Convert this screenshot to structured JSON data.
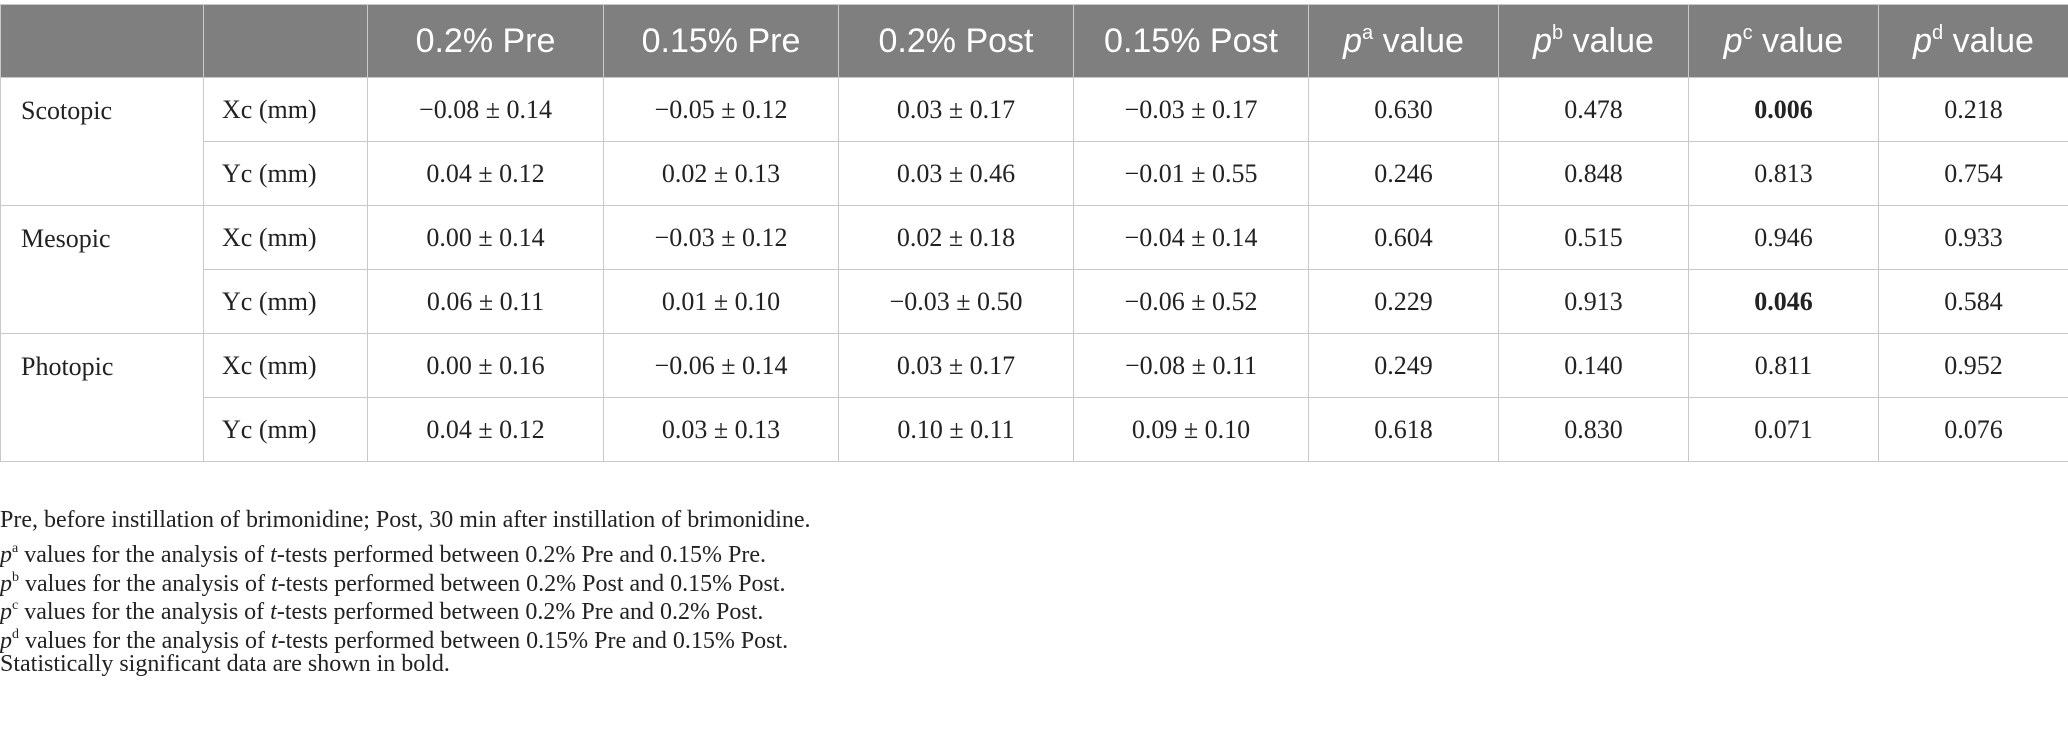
{
  "table": {
    "headers": [
      {
        "text": "",
        "p": "",
        "sup": "",
        "rest": ""
      },
      {
        "text": "",
        "p": "",
        "sup": "",
        "rest": ""
      },
      {
        "text": "0.2% Pre",
        "p": "",
        "sup": "",
        "rest": ""
      },
      {
        "text": "0.15% Pre",
        "p": "",
        "sup": "",
        "rest": ""
      },
      {
        "text": "0.2% Post",
        "p": "",
        "sup": "",
        "rest": ""
      },
      {
        "text": "0.15% Post",
        "p": "",
        "sup": "",
        "rest": ""
      },
      {
        "text": "",
        "p": "p",
        "sup": "a",
        "rest": " value"
      },
      {
        "text": "",
        "p": "p",
        "sup": "b",
        "rest": " value"
      },
      {
        "text": "",
        "p": "p",
        "sup": "c",
        "rest": " value"
      },
      {
        "text": "",
        "p": "p",
        "sup": "d",
        "rest": " value"
      }
    ],
    "groups": [
      {
        "name": "Scotopic",
        "rows": [
          {
            "measure": "Xc (mm)",
            "cells": [
              "−0.08 ± 0.14",
              "−0.05 ± 0.12",
              "0.03 ± 0.17",
              "−0.03 ± 0.17",
              "0.630",
              "0.478",
              "0.006",
              "0.218"
            ],
            "bold": [
              false,
              false,
              false,
              false,
              false,
              false,
              true,
              false
            ]
          },
          {
            "measure": "Yc (mm)",
            "cells": [
              "0.04 ± 0.12",
              "0.02 ± 0.13",
              "0.03 ± 0.46",
              "−0.01 ± 0.55",
              "0.246",
              "0.848",
              "0.813",
              "0.754"
            ],
            "bold": [
              false,
              false,
              false,
              false,
              false,
              false,
              false,
              false
            ]
          }
        ]
      },
      {
        "name": "Mesopic",
        "rows": [
          {
            "measure": "Xc (mm)",
            "cells": [
              "0.00 ± 0.14",
              "−0.03 ± 0.12",
              "0.02 ± 0.18",
              "−0.04 ± 0.14",
              "0.604",
              "0.515",
              "0.946",
              "0.933"
            ],
            "bold": [
              false,
              false,
              false,
              false,
              false,
              false,
              false,
              false
            ]
          },
          {
            "measure": "Yc (mm)",
            "cells": [
              "0.06 ± 0.11",
              "0.01 ± 0.10",
              "−0.03 ± 0.50",
              "−0.06 ± 0.52",
              "0.229",
              "0.913",
              "0.046",
              "0.584"
            ],
            "bold": [
              false,
              false,
              false,
              false,
              false,
              false,
              true,
              false
            ]
          }
        ]
      },
      {
        "name": "Photopic",
        "rows": [
          {
            "measure": "Xc (mm)",
            "cells": [
              "0.00 ± 0.16",
              "−0.06 ± 0.14",
              "0.03 ± 0.17",
              "−0.08 ± 0.11",
              "0.249",
              "0.140",
              "0.811",
              "0.952"
            ],
            "bold": [
              false,
              false,
              false,
              false,
              false,
              false,
              false,
              false
            ]
          },
          {
            "measure": "Yc (mm)",
            "cells": [
              "0.04 ± 0.12",
              "0.03 ± 0.13",
              "0.10 ± 0.11",
              "0.09 ± 0.10",
              "0.618",
              "0.830",
              "0.071",
              "0.076"
            ],
            "bold": [
              false,
              false,
              false,
              false,
              false,
              false,
              false,
              false
            ]
          }
        ]
      }
    ]
  },
  "notes": {
    "abbrev": "Pre, before instillation of brimonidine; Post, 30 min after instillation of brimonidine.",
    "lines": [
      {
        "p": "p",
        "sup": "a",
        "pre": " values for the analysis of ",
        "t": "t",
        "post": "-tests performed between 0.2% Pre and 0.15% Pre."
      },
      {
        "p": "p",
        "sup": "b",
        "pre": " values for the analysis of ",
        "t": "t",
        "post": "-tests performed between 0.2% Post and 0.15% Post."
      },
      {
        "p": "p",
        "sup": "c",
        "pre": " values for the analysis of ",
        "t": "t",
        "post": "-tests performed between 0.2% Pre and 0.2% Post."
      },
      {
        "p": "p",
        "sup": "d",
        "pre": " values for the analysis of ",
        "t": "t",
        "post": "-tests performed between 0.15% Pre and 0.15% Post."
      }
    ],
    "bold_note": "Statistically significant data are shown in bold."
  }
}
